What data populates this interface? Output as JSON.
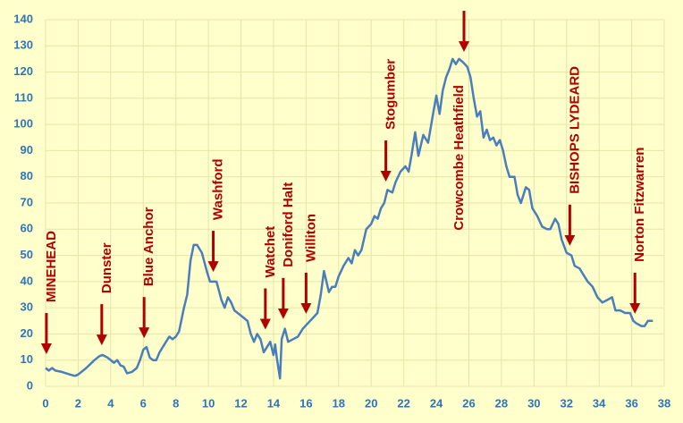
{
  "chart_data": {
    "type": "line",
    "x": [
      0,
      0.2,
      0.4,
      0.6,
      1,
      1.5,
      1.8,
      2,
      2.5,
      3,
      3.3,
      3.5,
      3.8,
      4.2,
      4.4,
      4.6,
      4.8,
      5,
      5.3,
      5.6,
      5.8,
      6,
      6.2,
      6.4,
      6.6,
      6.8,
      7,
      7.3,
      7.6,
      7.8,
      8,
      8.2,
      8.5,
      8.7,
      8.9,
      9.1,
      9.3,
      9.6,
      9.9,
      10.1,
      10.3,
      10.5,
      10.8,
      11,
      11.2,
      11.4,
      11.6,
      11.8,
      12,
      12.2,
      12.4,
      12.6,
      12.8,
      13,
      13.2,
      13.4,
      13.6,
      13.8,
      14,
      14.1,
      14.2,
      14.4,
      14.5,
      14.7,
      14.9,
      15.2,
      15.5,
      15.8,
      16.1,
      16.4,
      16.7,
      16.9,
      17.1,
      17.4,
      17.6,
      17.8,
      18,
      18.3,
      18.6,
      18.8,
      19,
      19.2,
      19.4,
      19.7,
      20,
      20.2,
      20.4,
      20.6,
      20.8,
      21,
      21.3,
      21.5,
      21.8,
      22.1,
      22.3,
      22.5,
      22.7,
      22.9,
      23.2,
      23.5,
      23.8,
      24,
      24.2,
      24.4,
      24.6,
      24.8,
      25,
      25.2,
      25.4,
      25.6,
      25.9,
      26.1,
      26.3,
      26.5,
      26.7,
      26.9,
      27.1,
      27.3,
      27.5,
      27.7,
      27.9,
      28.1,
      28.3,
      28.5,
      28.8,
      29,
      29.2,
      29.5,
      29.7,
      29.9,
      30.2,
      30.5,
      30.8,
      31,
      31.3,
      31.5,
      31.7,
      32,
      32.3,
      32.5,
      32.8,
      33,
      33.3,
      33.6,
      33.9,
      34.2,
      34.5,
      34.8,
      35,
      35.3,
      35.6,
      35.9,
      36.1,
      36.3,
      36.6,
      36.8,
      37,
      37.3
    ],
    "values": [
      7,
      6,
      7,
      6,
      5.5,
      4.5,
      4,
      4.5,
      7,
      10,
      11.5,
      12,
      11,
      9,
      10,
      8,
      7.5,
      5,
      5.5,
      7,
      10,
      14,
      15,
      11,
      10,
      10,
      13,
      16,
      19,
      18,
      19,
      21,
      30,
      35,
      48,
      54,
      54,
      51,
      44,
      40,
      40,
      40,
      33,
      30,
      34,
      32,
      29,
      28,
      27,
      26,
      25,
      20,
      17,
      20,
      18,
      13,
      15,
      17,
      12,
      16,
      11,
      3,
      18,
      22,
      17,
      18,
      19,
      22,
      24,
      26,
      28,
      35,
      44,
      36,
      38,
      38,
      42,
      46,
      49,
      47,
      52,
      50,
      52,
      60,
      62,
      65,
      64,
      68,
      70,
      75,
      74,
      78,
      82,
      84,
      82,
      89,
      97,
      88,
      96,
      93,
      104,
      111,
      104,
      113,
      118,
      121,
      125,
      123,
      125,
      124,
      122,
      118,
      110,
      103,
      105,
      95,
      98,
      94,
      95,
      92,
      94,
      90,
      84,
      80,
      80,
      73,
      70,
      76,
      75,
      68,
      65,
      61,
      60,
      60,
      64,
      62,
      56,
      51,
      50,
      46,
      45,
      43,
      40,
      38,
      34,
      32,
      33,
      34,
      29,
      29,
      28,
      28,
      25,
      24,
      23,
      23,
      25,
      25
    ],
    "color": "#4a7ebb",
    "xlim": [
      0,
      38
    ],
    "xticks": [
      0,
      2,
      4,
      6,
      8,
      10,
      12,
      14,
      16,
      18,
      20,
      22,
      24,
      26,
      28,
      30,
      32,
      34,
      36,
      38
    ],
    "ylim": [
      0,
      140
    ],
    "yticks": [
      0,
      10,
      20,
      30,
      40,
      50,
      60,
      70,
      80,
      90,
      100,
      110,
      120,
      130,
      140
    ],
    "grid": true,
    "annotations": [
      {
        "text": "MINEHEAD",
        "x": 0.05,
        "y": 11.6
      },
      {
        "text": "Dunster",
        "x": 3.45,
        "y": 15
      },
      {
        "text": "Blue Anchor",
        "x": 6.05,
        "y": 17.7
      },
      {
        "text": "Washford",
        "x": 10.3,
        "y": 43
      },
      {
        "text": "Watchet",
        "x": 13.5,
        "y": 21
      },
      {
        "text": "Doniford Halt",
        "x": 14.6,
        "y": 25
      },
      {
        "text": "Williton",
        "x": 16.0,
        "y": 27
      },
      {
        "text": "Stogumber",
        "x": 20.9,
        "y": 77.5
      },
      {
        "text": "Crowcombe  Heathfield",
        "x": 25.7,
        "y": 127
      },
      {
        "text": "BISHOPS LYDEARD",
        "x": 32.2,
        "y": 53
      },
      {
        "text": "Norton Fitzwarren",
        "x": 36.2,
        "y": 27
      }
    ]
  }
}
